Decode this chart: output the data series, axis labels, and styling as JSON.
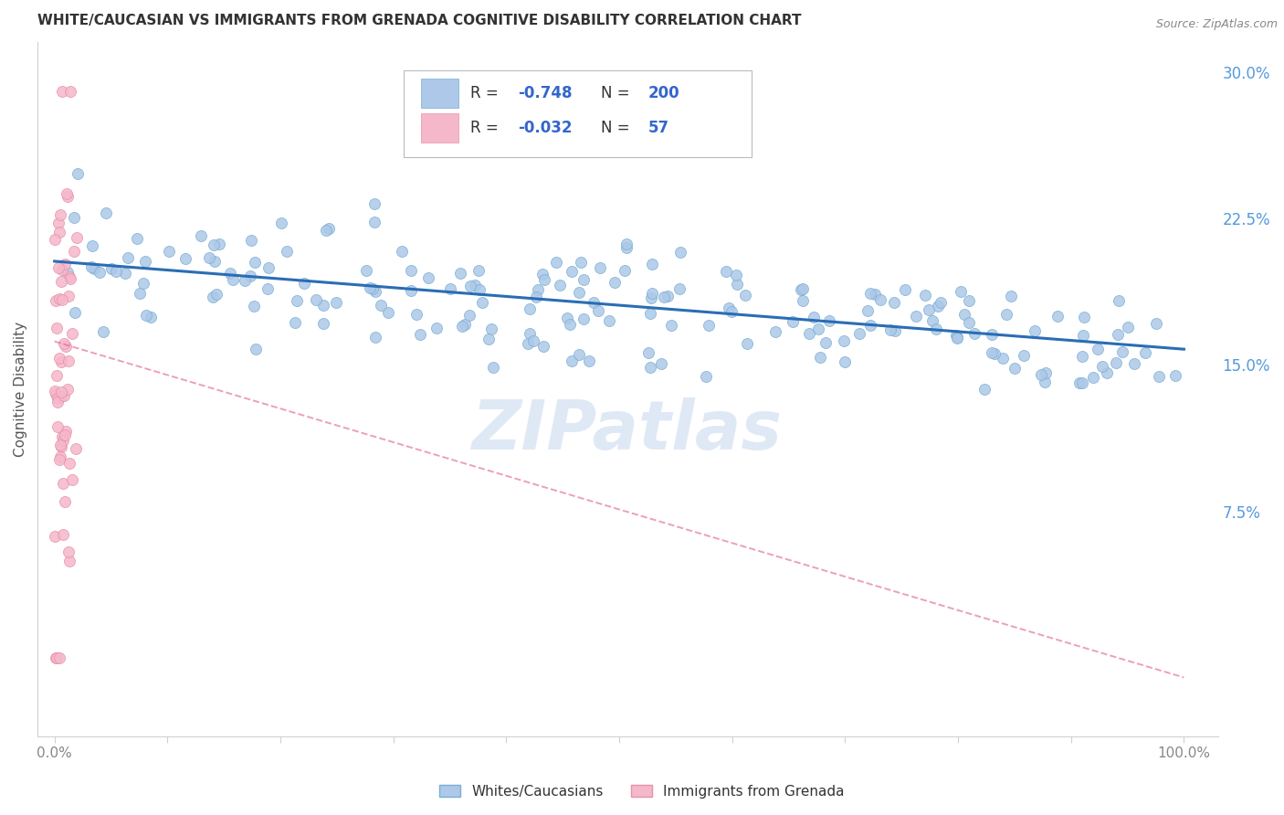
{
  "title": "WHITE/CAUCASIAN VS IMMIGRANTS FROM GRENADA COGNITIVE DISABILITY CORRELATION CHART",
  "source": "Source: ZipAtlas.com",
  "ylabel": "Cognitive Disability",
  "blue_R": "-0.748",
  "blue_N": 200,
  "pink_R": "-0.032",
  "pink_N": 57,
  "blue_fill_color": "#adc8e8",
  "blue_edge_color": "#7aafd4",
  "blue_line_color": "#2a6db5",
  "pink_fill_color": "#f5b8ca",
  "pink_edge_color": "#e890aa",
  "pink_line_color": "#e06090",
  "yticks": [
    0.0,
    0.075,
    0.15,
    0.225,
    0.3
  ],
  "ytick_labels": [
    "",
    "7.5%",
    "15.0%",
    "22.5%",
    "30.0%"
  ],
  "xticks": [
    0.0,
    0.1,
    0.2,
    0.3,
    0.4,
    0.5,
    0.6,
    0.7,
    0.8,
    0.9,
    1.0
  ],
  "xtick_labels": [
    "0.0%",
    "",
    "",
    "",
    "",
    "",
    "",
    "",
    "",
    "",
    "100.0%"
  ],
  "xlim": [
    -0.015,
    1.03
  ],
  "ylim": [
    -0.04,
    0.315
  ],
  "blue_trend_x0": 0.0,
  "blue_trend_y0": 0.203,
  "blue_trend_x1": 1.0,
  "blue_trend_y1": 0.158,
  "pink_trend_x0": 0.0,
  "pink_trend_y0": 0.162,
  "pink_trend_x1": 1.0,
  "pink_trend_y1": -0.01,
  "watermark": "ZIPatlas",
  "legend_blue_label": "Whites/Caucasians",
  "legend_pink_label": "Immigrants from Grenada",
  "title_color": "#333333",
  "axis_label_color": "#555555",
  "tick_color": "#888888",
  "grid_color": "#d0d0d0",
  "right_yaxis_color": "#5599dd",
  "legend_text_color": "#333333",
  "legend_val_color": "#3366cc"
}
